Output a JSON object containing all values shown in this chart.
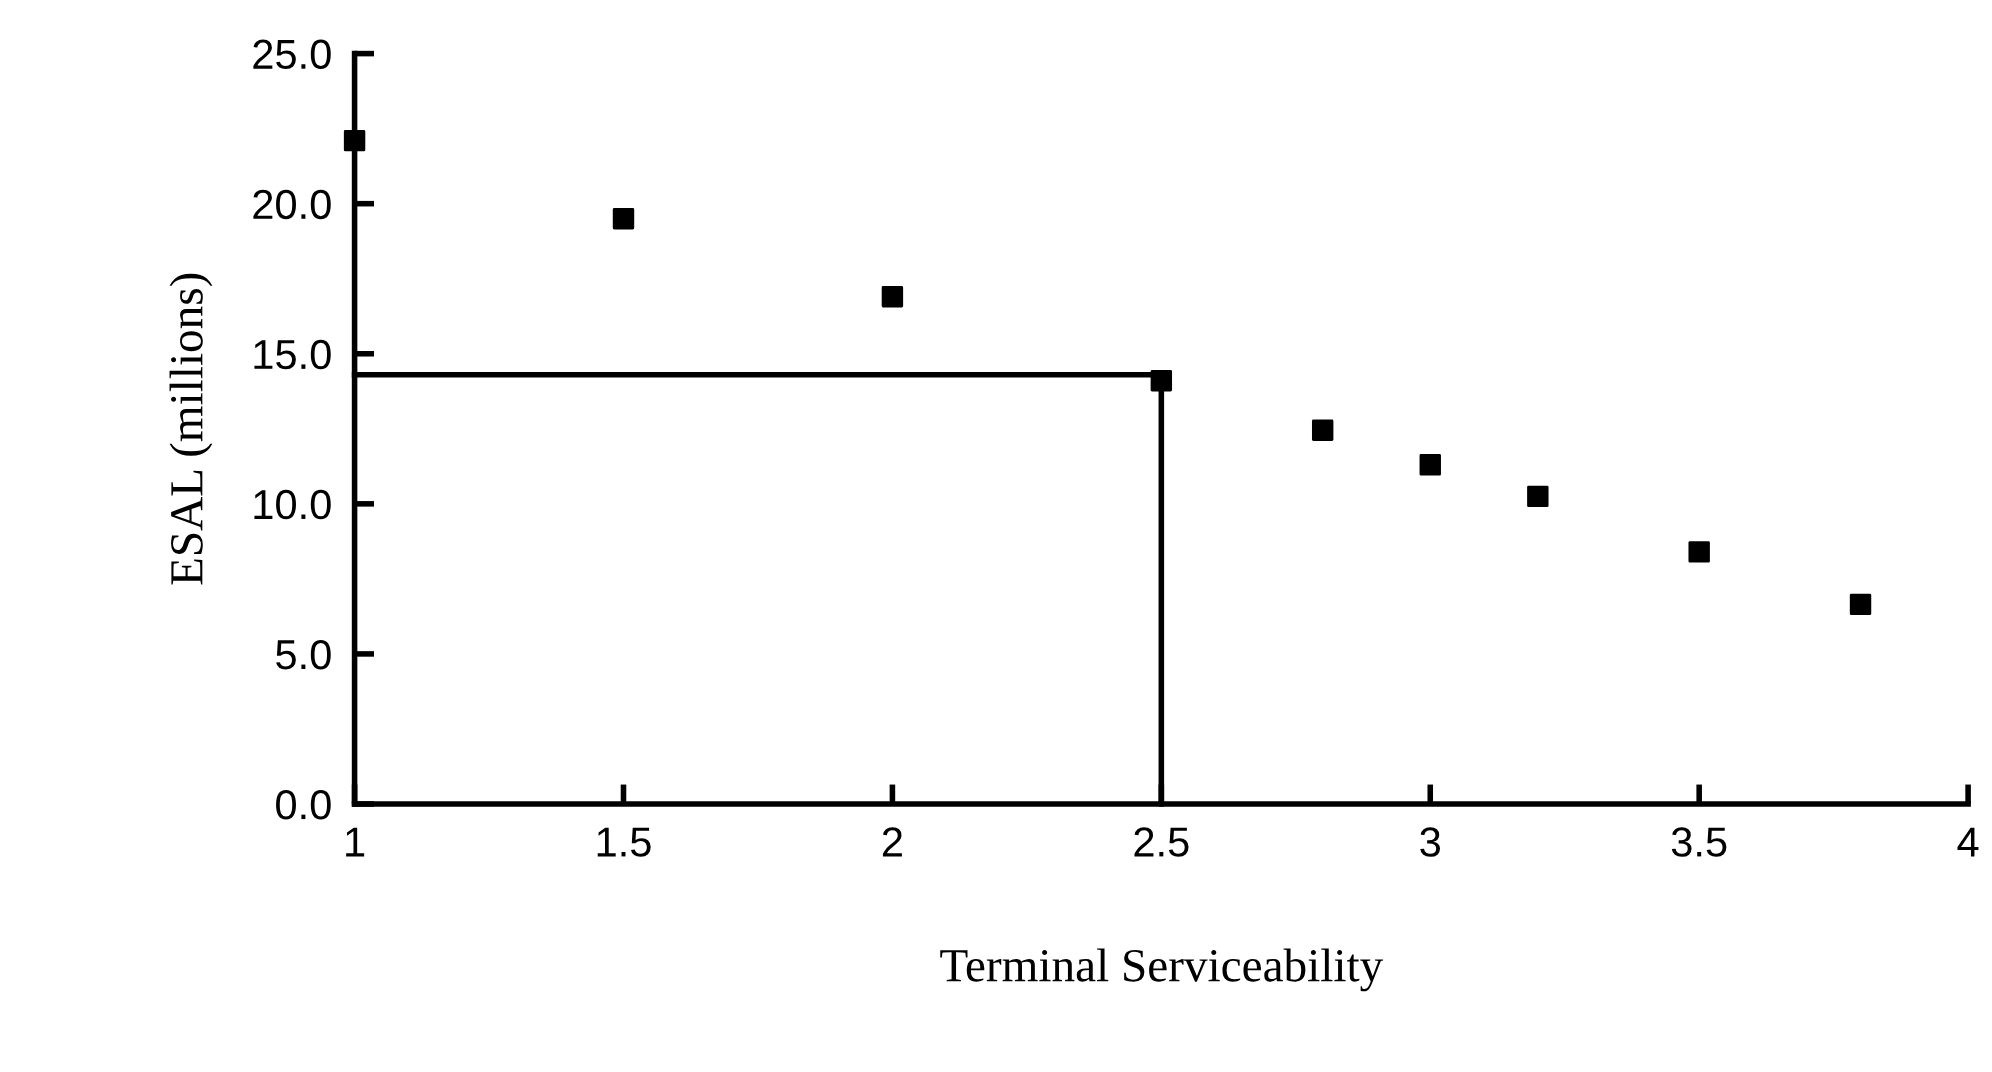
{
  "chart_data": {
    "type": "scatter",
    "xlabel": "Terminal Serviceability",
    "ylabel": "ESAL (millions)",
    "series": [
      {
        "color": "#000000",
        "marker": "square",
        "x": [
          1,
          1.5,
          2,
          2.5,
          2.8,
          3,
          3.2,
          3.5,
          3.8
        ],
        "values": [
          22.1,
          19.5,
          16.9,
          14.1,
          12.45,
          11.3,
          10.25,
          8.4,
          6.65
        ]
      },
      {
        "type": "line",
        "color": "#000000",
        "marker": "none",
        "line_style": "solid",
        "x": [
          1,
          2.5,
          2.5
        ],
        "values": [
          14.3,
          14.3,
          0
        ]
      }
    ],
    "xlim": [
      1,
      4
    ],
    "ylim": [
      0,
      25
    ],
    "xticks": [
      1,
      1.5,
      2,
      2.5,
      3,
      3.5,
      4
    ],
    "yticks": [
      {
        "value": 0,
        "label": "0.0"
      },
      {
        "value": 5,
        "label": "5.0"
      },
      {
        "value": 10,
        "label": "10.0"
      },
      {
        "value": 15,
        "label": "15.0"
      },
      {
        "value": 20,
        "label": "20.0"
      },
      {
        "value": 25,
        "label": "25.0"
      }
    ],
    "grid": false,
    "legend": false
  }
}
